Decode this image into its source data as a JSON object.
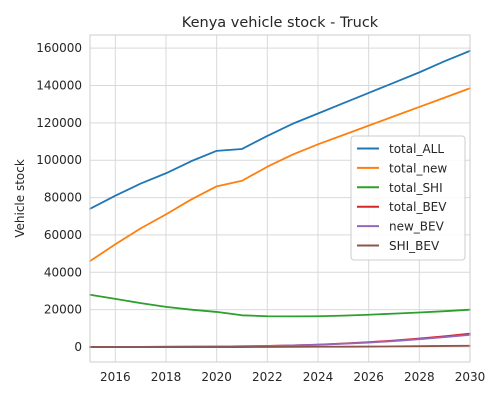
{
  "chart_data": {
    "type": "line",
    "title": "Kenya vehicle stock - Truck",
    "xlabel": "",
    "ylabel": "Vehicle stock",
    "xlim": [
      2015,
      2030
    ],
    "ylim": [
      -8000,
      167000
    ],
    "xticks": [
      2016,
      2018,
      2020,
      2022,
      2024,
      2026,
      2028,
      2030
    ],
    "yticks": [
      0,
      20000,
      40000,
      60000,
      80000,
      100000,
      120000,
      140000,
      160000
    ],
    "grid": true,
    "legend_position": "center-right",
    "x": [
      2015,
      2016,
      2017,
      2018,
      2019,
      2020,
      2021,
      2022,
      2023,
      2024,
      2025,
      2026,
      2027,
      2028,
      2029,
      2030
    ],
    "series": [
      {
        "name": "total_ALL",
        "color": "#1f77b4",
        "values": [
          74000,
          81000,
          87500,
          93000,
          99500,
          105000,
          106000,
          113000,
          119500,
          125000,
          130500,
          136000,
          141500,
          147000,
          153000,
          158500
        ]
      },
      {
        "name": "total_new",
        "color": "#ff7f0e",
        "values": [
          46000,
          55000,
          63500,
          71000,
          79000,
          86000,
          89000,
          96500,
          103000,
          108500,
          113500,
          118500,
          123500,
          128500,
          133500,
          138500
        ]
      },
      {
        "name": "total_SHI",
        "color": "#2ca02c",
        "values": [
          28000,
          25800,
          23500,
          21500,
          20000,
          18800,
          17000,
          16500,
          16400,
          16500,
          16800,
          17300,
          17900,
          18500,
          19200,
          20000
        ]
      },
      {
        "name": "total_BEV",
        "color": "#d62728",
        "values": [
          0,
          50,
          100,
          150,
          200,
          300,
          400,
          600,
          900,
          1300,
          1900,
          2600,
          3500,
          4600,
          5800,
          7200
        ]
      },
      {
        "name": "new_BEV",
        "color": "#9467bd",
        "values": [
          0,
          50,
          100,
          150,
          200,
          300,
          400,
          550,
          850,
          1200,
          1750,
          2400,
          3200,
          4200,
          5300,
          6500
        ]
      },
      {
        "name": "SHI_BEV",
        "color": "#8c564b",
        "values": [
          0,
          0,
          0,
          0,
          0,
          0,
          0,
          50,
          100,
          150,
          200,
          250,
          350,
          450,
          600,
          700
        ]
      }
    ]
  }
}
